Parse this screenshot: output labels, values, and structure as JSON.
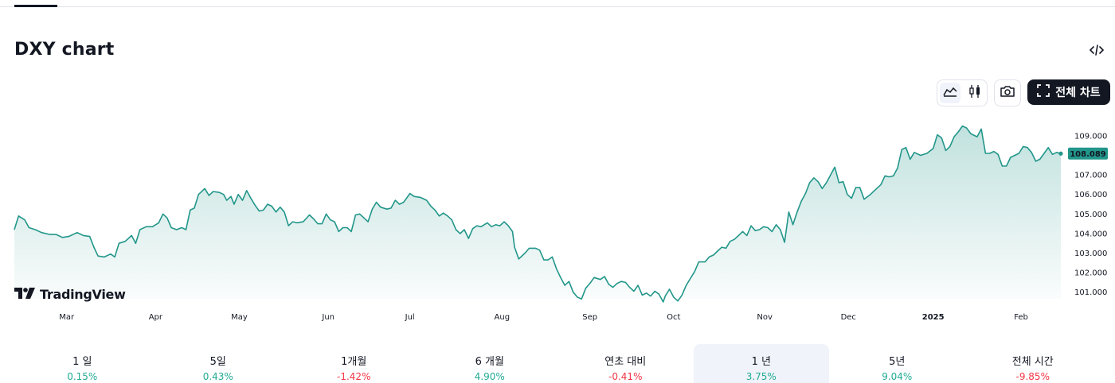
{
  "page": {
    "title": "DXY chart",
    "brand": "TradingView",
    "full_chart_label": "전체 차트",
    "embed_icon": "code-icon",
    "tool_icons": [
      "area-chart-icon",
      "candlestick-icon",
      "camera-icon",
      "fullscreen-icon"
    ]
  },
  "periods": [
    {
      "label": "1 일",
      "change": "0.15%",
      "dir": "pos"
    },
    {
      "label": "5일",
      "change": "0.43%",
      "dir": "pos"
    },
    {
      "label": "1개월",
      "change": "-1.42%",
      "dir": "neg"
    },
    {
      "label": "6 개월",
      "change": "4.90%",
      "dir": "pos"
    },
    {
      "label": "연초 대비",
      "change": "-0.41%",
      "dir": "neg"
    },
    {
      "label": "1 년",
      "change": "3.75%",
      "dir": "pos",
      "selected": true
    },
    {
      "label": "5년",
      "change": "9.04%",
      "dir": "pos"
    },
    {
      "label": "전체 시간",
      "change": "-9.85%",
      "dir": "neg"
    }
  ],
  "colors": {
    "line": "#22968a",
    "positive": "#22ab94",
    "negative": "#f23645",
    "price_tag": "#22968a"
  },
  "chart_data": {
    "type": "area",
    "title": "DXY chart",
    "y_ticks": [
      "109.000",
      "108.000",
      "107.000",
      "106.000",
      "105.000",
      "104.000",
      "103.000",
      "102.000",
      "101.000"
    ],
    "ylim": [
      100.6,
      109.8
    ],
    "last_price": "108.089",
    "x_ticks": [
      {
        "label": "Mar",
        "t": 0.05
      },
      {
        "label": "Apr",
        "t": 0.135
      },
      {
        "label": "May",
        "t": 0.215
      },
      {
        "label": "Jun",
        "t": 0.3
      },
      {
        "label": "Jul",
        "t": 0.378
      },
      {
        "label": "Aug",
        "t": 0.466
      },
      {
        "label": "Sep",
        "t": 0.55
      },
      {
        "label": "Oct",
        "t": 0.63
      },
      {
        "label": "Nov",
        "t": 0.717
      },
      {
        "label": "Dec",
        "t": 0.797
      },
      {
        "label": "2025",
        "t": 0.878,
        "bold": true
      },
      {
        "label": "Feb",
        "t": 0.962
      }
    ],
    "series": [
      {
        "points": [
          [
            0.0,
            104.2
          ],
          [
            0.004,
            104.9
          ],
          [
            0.01,
            104.7
          ],
          [
            0.014,
            104.3
          ],
          [
            0.02,
            104.2
          ],
          [
            0.026,
            104.05
          ],
          [
            0.034,
            103.95
          ],
          [
            0.04,
            103.95
          ],
          [
            0.046,
            103.8
          ],
          [
            0.052,
            103.85
          ],
          [
            0.06,
            104.05
          ],
          [
            0.066,
            103.9
          ],
          [
            0.072,
            103.85
          ],
          [
            0.076,
            103.3
          ],
          [
            0.08,
            102.85
          ],
          [
            0.086,
            102.8
          ],
          [
            0.092,
            102.95
          ],
          [
            0.096,
            102.8
          ],
          [
            0.1,
            103.5
          ],
          [
            0.106,
            103.6
          ],
          [
            0.112,
            103.9
          ],
          [
            0.116,
            103.5
          ],
          [
            0.12,
            104.2
          ],
          [
            0.126,
            104.35
          ],
          [
            0.132,
            104.35
          ],
          [
            0.138,
            104.55
          ],
          [
            0.142,
            105.0
          ],
          [
            0.146,
            104.8
          ],
          [
            0.15,
            104.3
          ],
          [
            0.155,
            104.2
          ],
          [
            0.16,
            104.3
          ],
          [
            0.164,
            104.2
          ],
          [
            0.168,
            105.2
          ],
          [
            0.172,
            105.3
          ],
          [
            0.176,
            106.0
          ],
          [
            0.182,
            106.3
          ],
          [
            0.186,
            105.95
          ],
          [
            0.19,
            106.15
          ],
          [
            0.196,
            106.1
          ],
          [
            0.2,
            106.0
          ],
          [
            0.203,
            105.7
          ],
          [
            0.207,
            105.9
          ],
          [
            0.21,
            105.5
          ],
          [
            0.214,
            106.0
          ],
          [
            0.218,
            105.7
          ],
          [
            0.222,
            106.2
          ],
          [
            0.226,
            105.8
          ],
          [
            0.23,
            105.45
          ],
          [
            0.234,
            105.15
          ],
          [
            0.238,
            105.2
          ],
          [
            0.242,
            105.5
          ],
          [
            0.246,
            105.4
          ],
          [
            0.25,
            105.1
          ],
          [
            0.254,
            105.35
          ],
          [
            0.258,
            105.1
          ],
          [
            0.262,
            104.4
          ],
          [
            0.266,
            104.6
          ],
          [
            0.27,
            104.55
          ],
          [
            0.276,
            104.6
          ],
          [
            0.282,
            104.95
          ],
          [
            0.286,
            104.75
          ],
          [
            0.29,
            104.5
          ],
          [
            0.294,
            104.5
          ],
          [
            0.298,
            105.0
          ],
          [
            0.302,
            104.7
          ],
          [
            0.306,
            104.6
          ],
          [
            0.31,
            104.1
          ],
          [
            0.314,
            104.3
          ],
          [
            0.318,
            104.3
          ],
          [
            0.322,
            104.1
          ],
          [
            0.326,
            104.95
          ],
          [
            0.33,
            105.0
          ],
          [
            0.334,
            104.8
          ],
          [
            0.338,
            104.6
          ],
          [
            0.342,
            105.25
          ],
          [
            0.346,
            105.6
          ],
          [
            0.35,
            105.35
          ],
          [
            0.356,
            105.25
          ],
          [
            0.36,
            105.3
          ],
          [
            0.364,
            105.7
          ],
          [
            0.368,
            105.5
          ],
          [
            0.372,
            105.6
          ],
          [
            0.378,
            106.05
          ],
          [
            0.382,
            105.9
          ],
          [
            0.388,
            105.85
          ],
          [
            0.394,
            105.7
          ],
          [
            0.398,
            105.4
          ],
          [
            0.402,
            105.2
          ],
          [
            0.406,
            104.9
          ],
          [
            0.41,
            105.05
          ],
          [
            0.414,
            104.9
          ],
          [
            0.418,
            104.7
          ],
          [
            0.422,
            104.2
          ],
          [
            0.426,
            104.0
          ],
          [
            0.43,
            104.2
          ],
          [
            0.434,
            103.75
          ],
          [
            0.438,
            104.25
          ],
          [
            0.442,
            104.4
          ],
          [
            0.446,
            104.35
          ],
          [
            0.452,
            104.55
          ],
          [
            0.456,
            104.35
          ],
          [
            0.46,
            104.45
          ],
          [
            0.464,
            104.4
          ],
          [
            0.468,
            104.6
          ],
          [
            0.472,
            104.4
          ],
          [
            0.476,
            104.1
          ],
          [
            0.478,
            103.3
          ],
          [
            0.482,
            102.7
          ],
          [
            0.488,
            103.0
          ],
          [
            0.492,
            103.25
          ],
          [
            0.498,
            103.25
          ],
          [
            0.502,
            103.15
          ],
          [
            0.506,
            102.65
          ],
          [
            0.51,
            102.65
          ],
          [
            0.514,
            102.8
          ],
          [
            0.518,
            102.2
          ],
          [
            0.522,
            101.75
          ],
          [
            0.526,
            101.35
          ],
          [
            0.53,
            101.55
          ],
          [
            0.534,
            101.0
          ],
          [
            0.538,
            100.75
          ],
          [
            0.542,
            100.65
          ],
          [
            0.546,
            101.2
          ],
          [
            0.55,
            101.45
          ],
          [
            0.554,
            101.75
          ],
          [
            0.56,
            101.65
          ],
          [
            0.564,
            101.8
          ],
          [
            0.568,
            101.4
          ],
          [
            0.572,
            101.25
          ],
          [
            0.576,
            101.45
          ],
          [
            0.58,
            101.55
          ],
          [
            0.584,
            101.5
          ],
          [
            0.588,
            101.25
          ],
          [
            0.592,
            101.05
          ],
          [
            0.596,
            101.35
          ],
          [
            0.6,
            100.85
          ],
          [
            0.604,
            100.95
          ],
          [
            0.608,
            100.8
          ],
          [
            0.612,
            101.05
          ],
          [
            0.616,
            100.9
          ],
          [
            0.62,
            100.5
          ],
          [
            0.622,
            100.8
          ],
          [
            0.626,
            101.15
          ],
          [
            0.63,
            100.75
          ],
          [
            0.634,
            100.55
          ],
          [
            0.638,
            100.85
          ],
          [
            0.642,
            101.35
          ],
          [
            0.646,
            101.7
          ],
          [
            0.65,
            102.05
          ],
          [
            0.654,
            102.55
          ],
          [
            0.66,
            102.55
          ],
          [
            0.664,
            102.8
          ],
          [
            0.668,
            102.9
          ],
          [
            0.672,
            103.1
          ],
          [
            0.676,
            103.3
          ],
          [
            0.68,
            103.25
          ],
          [
            0.684,
            103.6
          ],
          [
            0.688,
            103.7
          ],
          [
            0.692,
            103.9
          ],
          [
            0.696,
            104.1
          ],
          [
            0.7,
            103.9
          ],
          [
            0.704,
            104.4
          ],
          [
            0.708,
            104.15
          ],
          [
            0.712,
            104.2
          ],
          [
            0.716,
            104.35
          ],
          [
            0.72,
            104.3
          ],
          [
            0.724,
            104.1
          ],
          [
            0.728,
            104.45
          ],
          [
            0.732,
            104.2
          ],
          [
            0.736,
            103.55
          ],
          [
            0.74,
            105.1
          ],
          [
            0.744,
            104.45
          ],
          [
            0.748,
            105.1
          ],
          [
            0.752,
            105.65
          ],
          [
            0.756,
            106.05
          ],
          [
            0.76,
            106.6
          ],
          [
            0.764,
            106.85
          ],
          [
            0.768,
            106.65
          ],
          [
            0.772,
            106.3
          ],
          [
            0.776,
            106.6
          ],
          [
            0.78,
            107.0
          ],
          [
            0.784,
            107.4
          ],
          [
            0.788,
            106.6
          ],
          [
            0.792,
            106.65
          ],
          [
            0.796,
            106.0
          ],
          [
            0.8,
            105.8
          ],
          [
            0.804,
            106.35
          ],
          [
            0.808,
            106.35
          ],
          [
            0.812,
            105.75
          ],
          [
            0.818,
            106.0
          ],
          [
            0.824,
            106.3
          ],
          [
            0.828,
            106.5
          ],
          [
            0.832,
            106.95
          ],
          [
            0.836,
            106.9
          ],
          [
            0.84,
            106.95
          ],
          [
            0.844,
            107.35
          ],
          [
            0.848,
            108.3
          ],
          [
            0.852,
            108.4
          ],
          [
            0.856,
            107.8
          ],
          [
            0.86,
            108.15
          ],
          [
            0.866,
            108.0
          ],
          [
            0.872,
            108.1
          ],
          [
            0.878,
            108.35
          ],
          [
            0.882,
            109.05
          ],
          [
            0.886,
            108.9
          ],
          [
            0.89,
            108.25
          ],
          [
            0.894,
            108.45
          ],
          [
            0.898,
            108.95
          ],
          [
            0.902,
            109.2
          ],
          [
            0.906,
            109.5
          ],
          [
            0.91,
            109.4
          ],
          [
            0.914,
            109.1
          ],
          [
            0.92,
            108.95
          ],
          [
            0.924,
            109.35
          ],
          [
            0.928,
            108.1
          ],
          [
            0.932,
            108.1
          ],
          [
            0.936,
            108.2
          ],
          [
            0.94,
            108.05
          ],
          [
            0.944,
            107.45
          ],
          [
            0.948,
            107.45
          ],
          [
            0.952,
            107.9
          ],
          [
            0.956,
            108.0
          ],
          [
            0.96,
            108.1
          ],
          [
            0.964,
            108.45
          ],
          [
            0.968,
            108.4
          ],
          [
            0.972,
            108.15
          ],
          [
            0.976,
            107.7
          ],
          [
            0.98,
            107.8
          ],
          [
            0.984,
            108.1
          ],
          [
            0.988,
            108.4
          ],
          [
            0.992,
            108.05
          ],
          [
            0.996,
            108.15
          ],
          [
            1.0,
            108.09
          ]
        ]
      }
    ]
  }
}
